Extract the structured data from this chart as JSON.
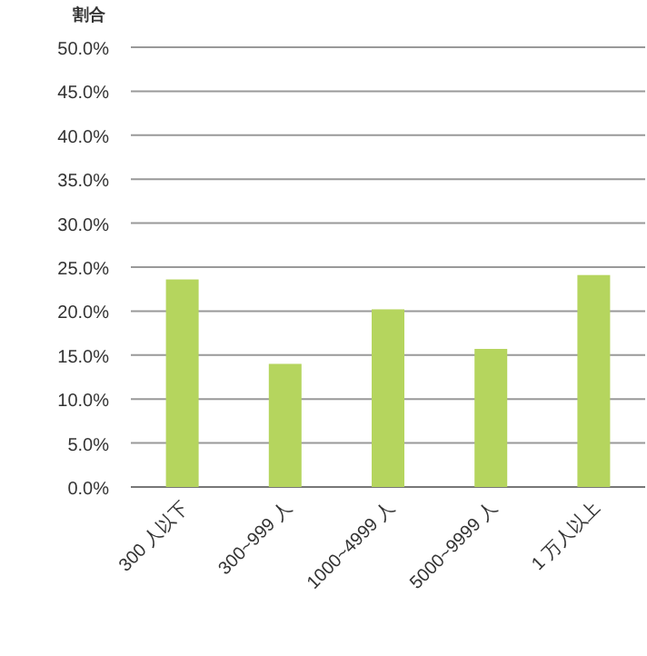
{
  "chart_data": {
    "type": "bar",
    "ylabel": "割合",
    "categories": [
      "300 人以下",
      "300~999 人",
      "1000~4999 人",
      "5000~9999 人",
      "1 万人以上"
    ],
    "values": [
      23.6,
      14.0,
      20.2,
      15.7,
      24.1
    ],
    "color": "#b5d55e",
    "ylim": [
      0,
      50
    ],
    "yticks": [
      {
        "value": 0,
        "label": "0.0%"
      },
      {
        "value": 5,
        "label": "5.0%"
      },
      {
        "value": 10,
        "label": "10.0%"
      },
      {
        "value": 15,
        "label": "15.0%"
      },
      {
        "value": 20,
        "label": "20.0%"
      },
      {
        "value": 25,
        "label": "25.0%"
      },
      {
        "value": 30,
        "label": "30.0%"
      },
      {
        "value": 35,
        "label": "35.0%"
      },
      {
        "value": 40,
        "label": "40.0%"
      },
      {
        "value": 45,
        "label": "45.0%"
      },
      {
        "value": 50,
        "label": "50.0%"
      }
    ],
    "grid": "y"
  }
}
